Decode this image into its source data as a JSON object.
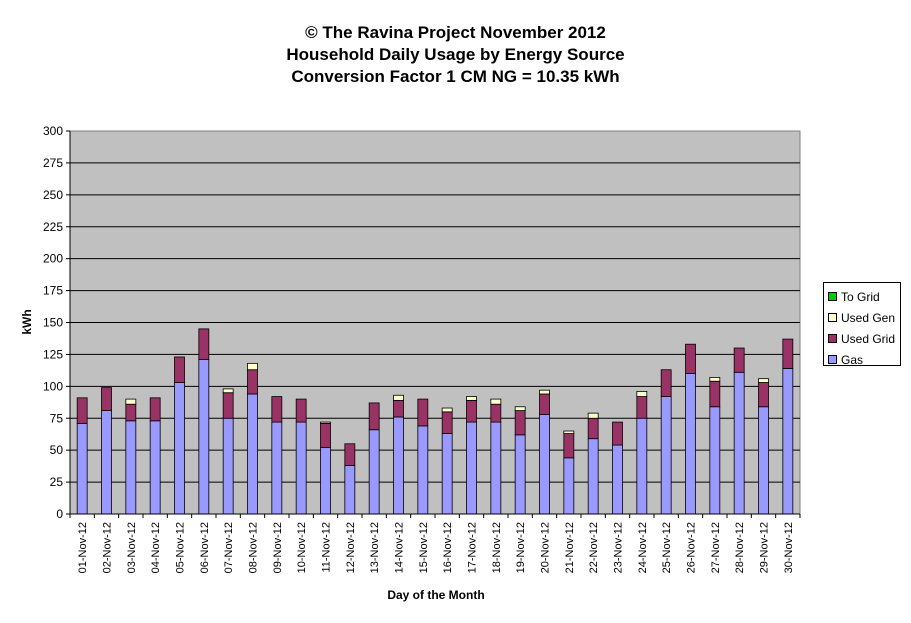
{
  "chart_data": {
    "type": "bar",
    "stacked": true,
    "title": [
      "© The Ravina Project November 2012",
      "Household Daily Usage by Energy Source",
      "Conversion Factor 1 CM NG = 10.35 kWh"
    ],
    "xlabel": "Day of the Month",
    "ylabel": "kWh",
    "ylim": [
      0,
      300
    ],
    "yticks": [
      0,
      25,
      50,
      75,
      100,
      125,
      150,
      175,
      200,
      225,
      250,
      275,
      300
    ],
    "grid": true,
    "legend_position": "right",
    "categories": [
      "01-Nov-12",
      "02-Nov-12",
      "03-Nov-12",
      "04-Nov-12",
      "05-Nov-12",
      "06-Nov-12",
      "07-Nov-12",
      "08-Nov-12",
      "09-Nov-12",
      "10-Nov-12",
      "11-Nov-12",
      "12-Nov-12",
      "13-Nov-12",
      "14-Nov-12",
      "15-Nov-12",
      "16-Nov-12",
      "17-Nov-12",
      "18-Nov-12",
      "19-Nov-12",
      "20-Nov-12",
      "21-Nov-12",
      "22-Nov-12",
      "23-Nov-12",
      "24-Nov-12",
      "25-Nov-12",
      "26-Nov-12",
      "27-Nov-12",
      "28-Nov-12",
      "29-Nov-12",
      "30-Nov-12"
    ],
    "series": [
      {
        "name": "Gas",
        "color": "#9999ff",
        "values": [
          71,
          81,
          73,
          73,
          103,
          121,
          75,
          94,
          72,
          72,
          52,
          38,
          66,
          76,
          69,
          63,
          72,
          72,
          62,
          78,
          44,
          59,
          54,
          75,
          92,
          110,
          84,
          111,
          84,
          114
        ]
      },
      {
        "name": "Used Grid",
        "color": "#993366",
        "values": [
          20,
          18,
          13,
          18,
          20,
          24,
          20,
          19,
          20,
          18,
          19,
          17,
          21,
          13,
          21,
          17,
          17,
          14,
          19,
          16,
          19,
          16,
          18,
          17,
          21,
          23,
          20,
          19,
          19,
          23
        ]
      },
      {
        "name": "Used Gen",
        "color": "#ffffcc",
        "values": [
          0,
          0,
          4,
          0,
          0,
          0,
          3,
          5,
          0,
          0,
          1,
          0,
          0,
          4,
          0,
          3,
          3,
          4,
          3,
          3,
          2,
          4,
          0,
          4,
          0,
          0,
          3,
          0,
          3,
          0
        ]
      },
      {
        "name": "To Grid",
        "color": "#00cc00",
        "values": [
          0,
          0,
          0,
          0,
          0,
          0,
          0,
          0,
          0,
          0,
          0,
          0,
          0,
          0,
          0,
          0,
          0,
          0,
          0,
          0,
          0,
          0,
          0,
          0,
          0,
          0,
          0,
          0,
          0,
          0
        ]
      }
    ],
    "legend": [
      "To Grid",
      "Used Gen",
      "Used Grid",
      "Gas"
    ],
    "plot_background": "#c0c0c0"
  }
}
